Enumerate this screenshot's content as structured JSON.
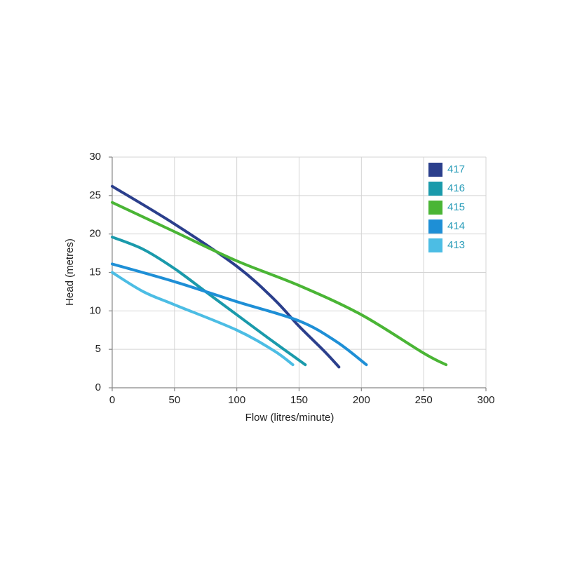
{
  "chart_data": {
    "type": "line",
    "x_label": "Flow (litres/minute)",
    "y_label": "Head (metres)",
    "xlim": [
      0,
      300
    ],
    "xticks": [
      0,
      50,
      100,
      150,
      200,
      250,
      300
    ],
    "ylim": [
      0,
      30
    ],
    "yticks": [
      0,
      5,
      10,
      15,
      20,
      25,
      30
    ],
    "grid": true,
    "legend": "upper right",
    "series": [
      {
        "name": "417",
        "color": "#2b3f8c",
        "x": [
          0,
          50,
          100,
          130,
          150,
          170,
          182
        ],
        "values": [
          26.2,
          21.3,
          15.8,
          11.5,
          8,
          4.8,
          2.7
        ]
      },
      {
        "name": "416",
        "color": "#1a9aab",
        "x": [
          0,
          25,
          50,
          75,
          100,
          125,
          155
        ],
        "values": [
          19.6,
          18,
          15.5,
          12.5,
          9.5,
          6.5,
          3
        ]
      },
      {
        "name": "415",
        "color": "#4ab535",
        "x": [
          0,
          50,
          100,
          150,
          200,
          250,
          268
        ],
        "values": [
          24.1,
          20.3,
          16.5,
          13.3,
          9.5,
          4.5,
          3
        ]
      },
      {
        "name": "414",
        "color": "#1e8fd6",
        "x": [
          0,
          50,
          100,
          150,
          180,
          204
        ],
        "values": [
          16.1,
          13.8,
          11.2,
          8.7,
          6,
          3
        ]
      },
      {
        "name": "413",
        "color": "#4cbde4",
        "x": [
          0,
          25,
          50,
          100,
          130,
          145
        ],
        "values": [
          15,
          12.5,
          10.8,
          7.5,
          4.8,
          3
        ]
      }
    ]
  }
}
